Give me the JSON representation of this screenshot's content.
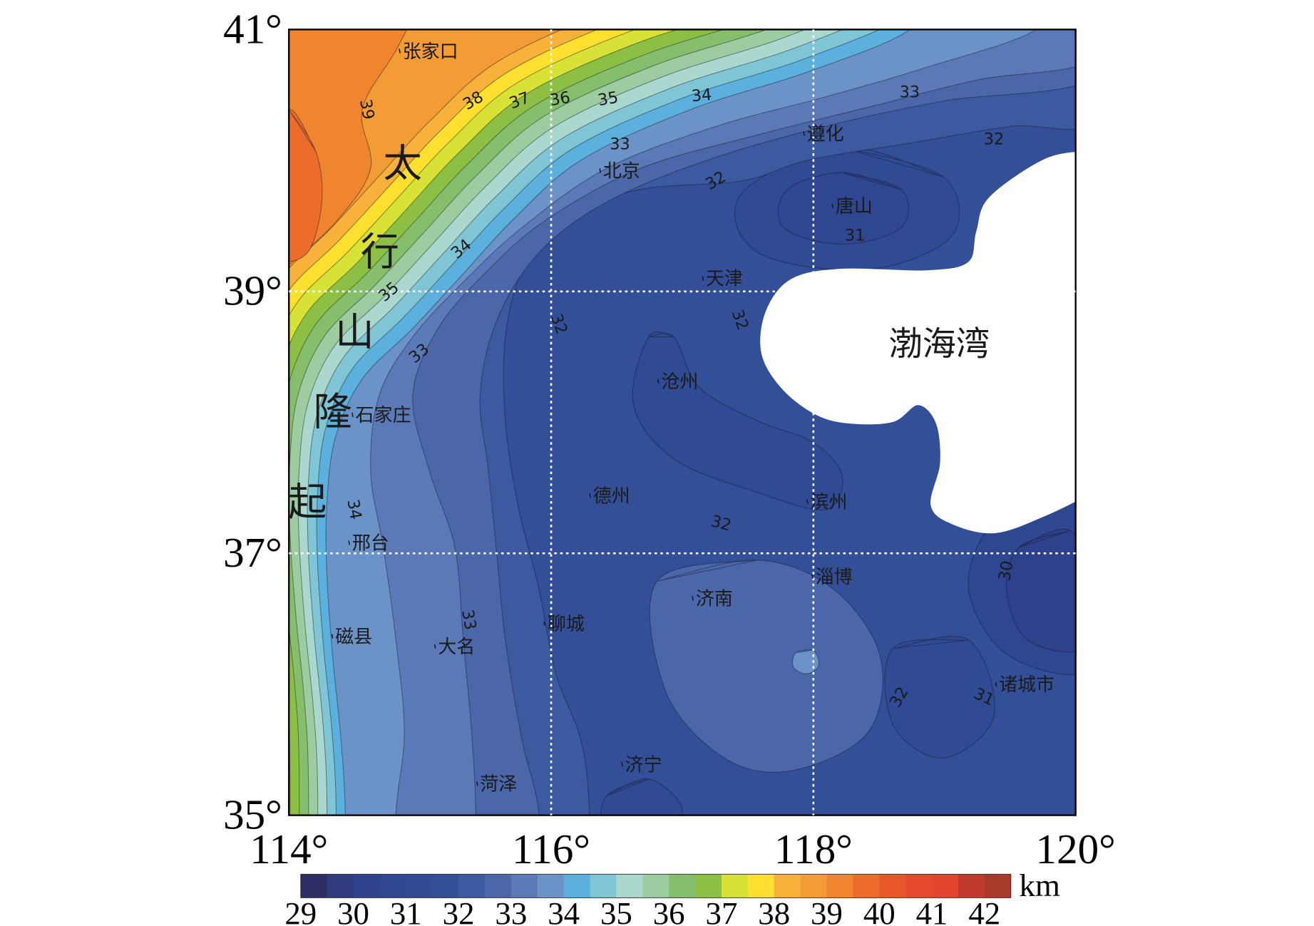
{
  "map": {
    "lon_range": [
      114,
      120
    ],
    "lat_range": [
      35,
      41
    ],
    "lat_ticks": [
      {
        "value": 41,
        "label": "41°"
      },
      {
        "value": 39,
        "label": "39°"
      },
      {
        "value": 37,
        "label": "37°"
      },
      {
        "value": 35,
        "label": "35°"
      }
    ],
    "lon_ticks": [
      {
        "value": 114,
        "label": "114°"
      },
      {
        "value": 116,
        "label": "116°"
      },
      {
        "value": 118,
        "label": "118°"
      },
      {
        "value": 120,
        "label": "120°"
      }
    ],
    "grid": true,
    "cities": [
      "张家口",
      "北京",
      "遵化",
      "唐山",
      "天津",
      "沧州",
      "石家庄",
      "德州",
      "滨州",
      "邢台",
      "淄博",
      "济南",
      "聊城",
      "磁县",
      "大名",
      "诸城市",
      "济宁",
      "菏泽"
    ],
    "contour_labels": [
      39,
      38,
      37,
      36,
      35,
      34,
      33,
      32,
      33,
      32,
      31,
      34,
      35,
      33,
      32,
      32,
      34,
      32,
      33,
      30,
      32,
      31
    ],
    "region_labels": [
      "太行山隆起",
      "渤海湾"
    ],
    "colorbar": {
      "range": [
        29,
        42.5
      ],
      "ticks": [
        29,
        30,
        31,
        32,
        33,
        34,
        35,
        36,
        37,
        38,
        39,
        40,
        41,
        42
      ],
      "unit": "km",
      "colors": [
        "#2d2d66",
        "#323b80",
        "#2f418b",
        "#2f4690",
        "#304b94",
        "#334f98",
        "#3b5a9f",
        "#4b67a9",
        "#5b79b6",
        "#6b93c8",
        "#5bb0de",
        "#7fc5d5",
        "#aad8cf",
        "#9ccca0",
        "#85bf6b",
        "#8dbf45",
        "#d8e236",
        "#fde02f",
        "#f8b13b",
        "#f39b34",
        "#ef852f",
        "#ec6d2b",
        "#e8572a",
        "#e54b2c",
        "#e2452e",
        "#bf3a2c",
        "#a73a2a"
      ]
    }
  }
}
